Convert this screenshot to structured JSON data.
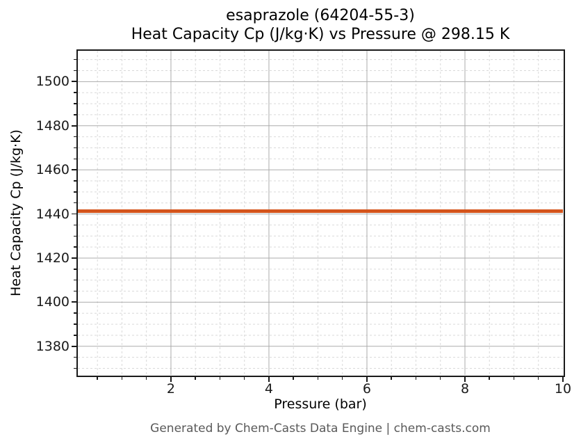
{
  "figure": {
    "title_line1": "esaprazole (64204-55-3)",
    "title_line2": "Heat Capacity Cp (J/kg·K) vs Pressure @ 298.15 K",
    "footer": "Generated by Chem-Casts Data Engine | chem-casts.com"
  },
  "chart_data": {
    "type": "line",
    "title": "esaprazole (64204-55-3)",
    "subtitle": "Heat Capacity Cp (J/kg·K) vs Pressure @ 298.15 K",
    "xlabel": "Pressure (bar)",
    "ylabel": "Heat Capacity Cp (J/kg·K)",
    "xlim": [
      0.1,
      10
    ],
    "ylim": [
      1367,
      1514
    ],
    "x_major_ticks": [
      2,
      4,
      6,
      8,
      10
    ],
    "x_minor_step": 0.5,
    "y_major_ticks": [
      1380,
      1400,
      1420,
      1440,
      1460,
      1480,
      1500
    ],
    "y_minor_step": 5,
    "grid": {
      "major": "solid",
      "minor": "dashed"
    },
    "legend_position": "none",
    "series": [
      {
        "name": "Heat Capacity Cp",
        "color": "#d4541c",
        "line_width": 5,
        "x": [
          0.1,
          1,
          2,
          3,
          4,
          5,
          6,
          7,
          8,
          9,
          10
        ],
        "y": [
          1441.3,
          1441.3,
          1441.3,
          1441.3,
          1441.3,
          1441.3,
          1441.3,
          1441.3,
          1441.3,
          1441.3,
          1441.3
        ]
      }
    ],
    "styles": {
      "background": "#ffffff",
      "spine_color": "#1a1a1a",
      "tick_color": "#1a1a1a",
      "major_grid_color": "#ababab",
      "minor_grid_color": "#d9d9d9",
      "text_color": "#000000",
      "footer_color": "#595959"
    }
  }
}
